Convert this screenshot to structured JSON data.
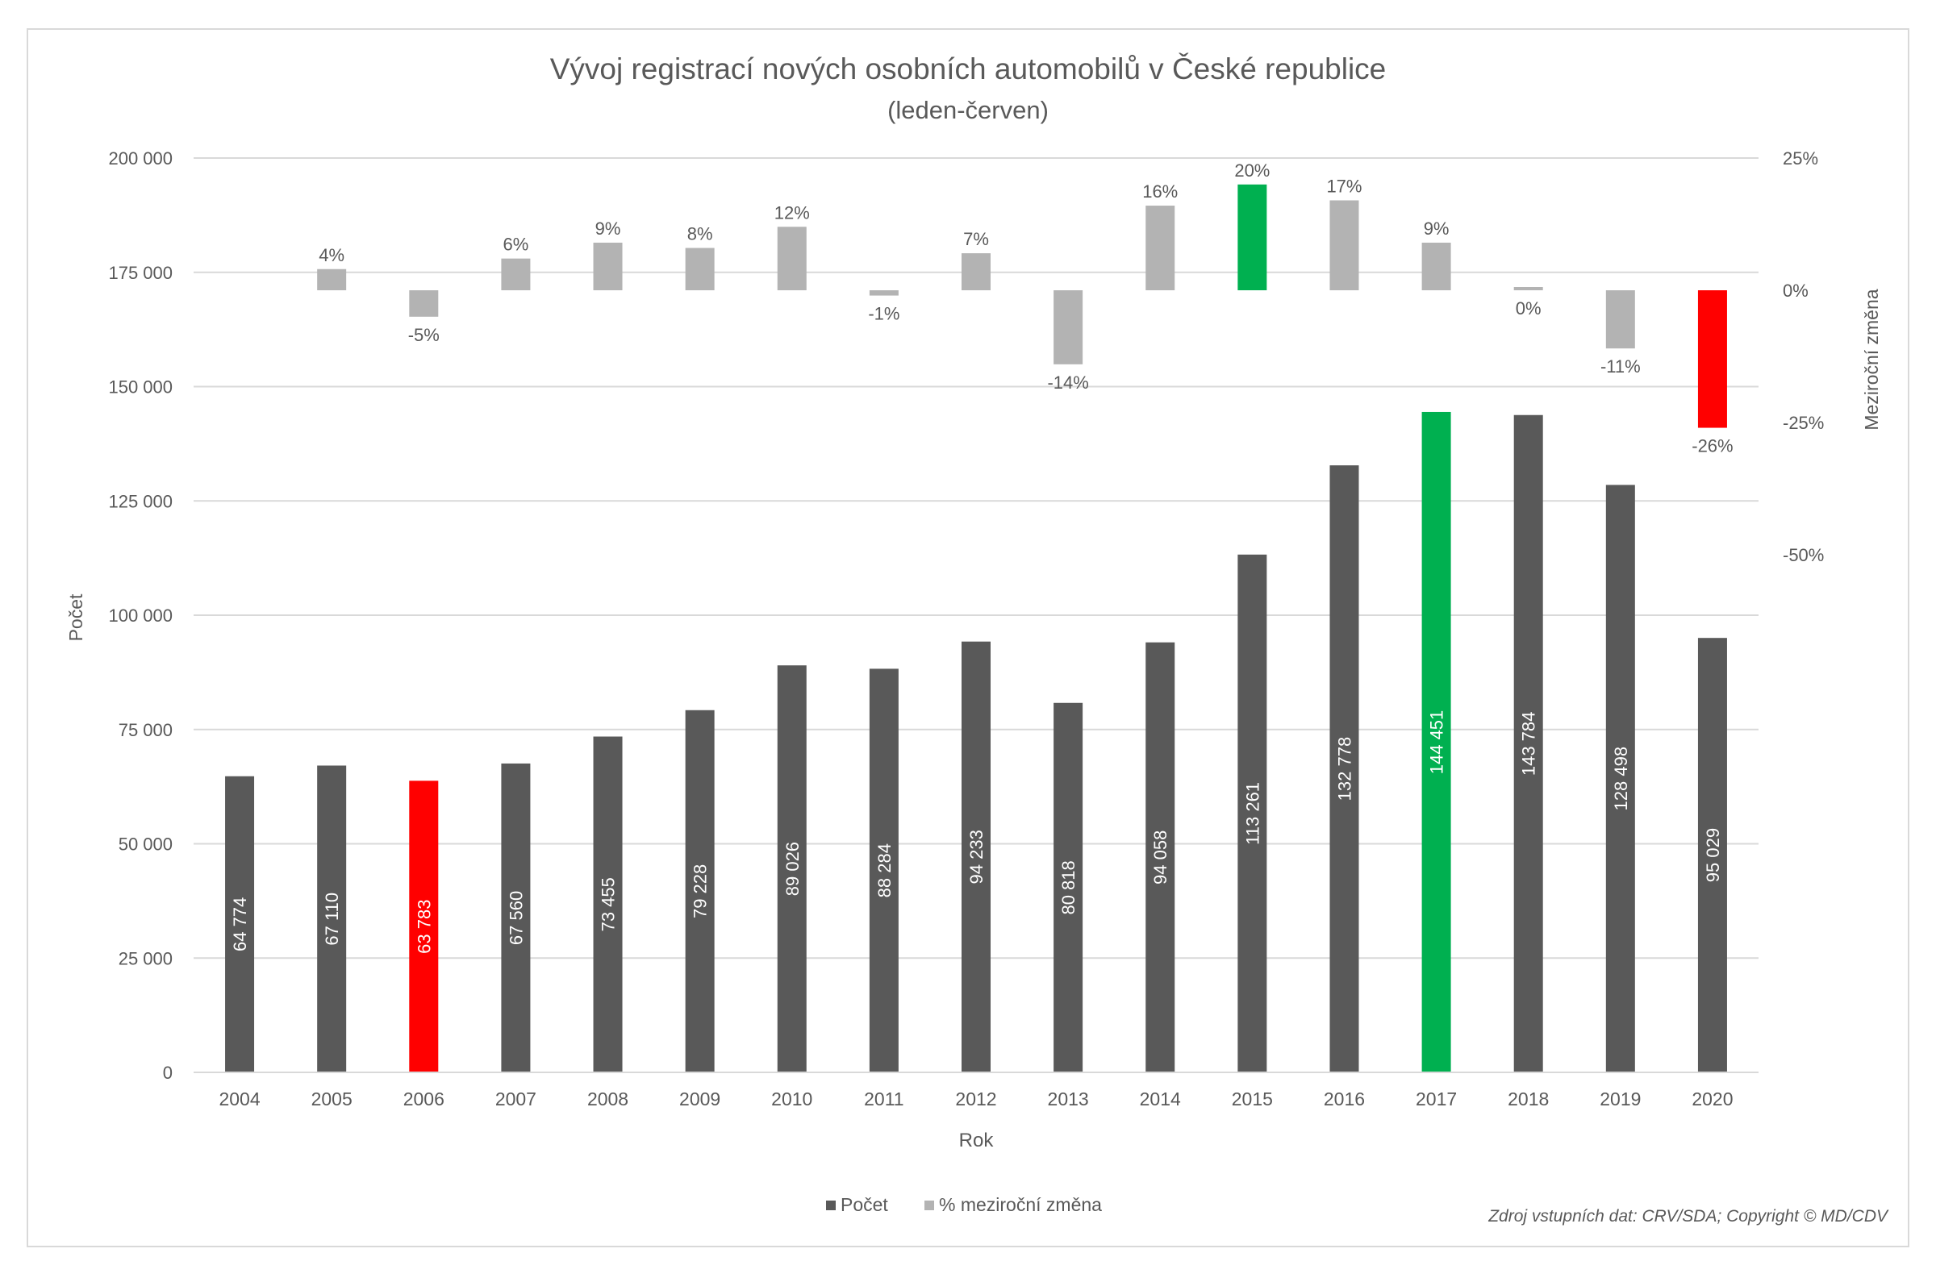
{
  "chart_data": {
    "type": "bar",
    "title": "Vývoj registrací nových osobních automobilů v České republice",
    "subtitle": "(leden-červen)",
    "xlabel": "Rok",
    "ylabel": "Počet",
    "y2label": "Meziroční změna",
    "ylim": [
      0,
      200000
    ],
    "y2lim": [
      -50,
      25
    ],
    "y_ticks": [
      {
        "value": 0,
        "label": "0"
      },
      {
        "value": 25000,
        "label": "25 000"
      },
      {
        "value": 50000,
        "label": "50 000"
      },
      {
        "value": 75000,
        "label": "75 000"
      },
      {
        "value": 100000,
        "label": "100 000"
      },
      {
        "value": 125000,
        "label": "125 000"
      },
      {
        "value": 150000,
        "label": "150 000"
      },
      {
        "value": 175000,
        "label": "175 000"
      },
      {
        "value": 200000,
        "label": "200 000"
      }
    ],
    "y2_ticks": [
      {
        "value": 25,
        "label": "25%"
      },
      {
        "value": 0,
        "label": "0%"
      },
      {
        "value": -25,
        "label": "-25%"
      },
      {
        "value": -50,
        "label": "-50%"
      }
    ],
    "grid": true,
    "legend_position": "bottom",
    "categories": [
      "2004",
      "2005",
      "2006",
      "2007",
      "2008",
      "2009",
      "2010",
      "2011",
      "2012",
      "2013",
      "2014",
      "2015",
      "2016",
      "2017",
      "2018",
      "2019",
      "2020"
    ],
    "series": [
      {
        "name": "Počet",
        "color": "#595959",
        "values": [
          64774,
          67110,
          63783,
          67560,
          73455,
          79228,
          89026,
          88284,
          94233,
          80818,
          94058,
          113261,
          132778,
          144451,
          143784,
          128498,
          95029
        ],
        "labels": [
          "64 774",
          "67 110",
          "63 783",
          "67 560",
          "73 455",
          "79 228",
          "89 026",
          "88 284",
          "94 233",
          "80 818",
          "94 058",
          "113 261",
          "132 778",
          "144 451",
          "143 784",
          "128 498",
          "95 029"
        ],
        "highlight": {
          "2006": "#ff0000",
          "2017": "#00b050"
        }
      },
      {
        "name": "% meziroční změna",
        "color": "#b3b3b3",
        "values": [
          null,
          4,
          -5,
          6,
          9,
          8,
          12,
          -1,
          7,
          -14,
          16,
          20,
          17,
          9,
          0,
          -11,
          -26
        ],
        "labels": [
          "",
          "4%",
          "-5%",
          "6%",
          "9%",
          "8%",
          "12%",
          "-1%",
          "7%",
          "-14%",
          "16%",
          "20%",
          "17%",
          "9%",
          "0%",
          "-11%",
          "-26%"
        ],
        "highlight": {
          "2015": "#00b050",
          "2020": "#ff0000"
        }
      }
    ],
    "source_note": "Zdroj vstupních dat: CRV/SDA; Copyright © MD/CDV"
  }
}
